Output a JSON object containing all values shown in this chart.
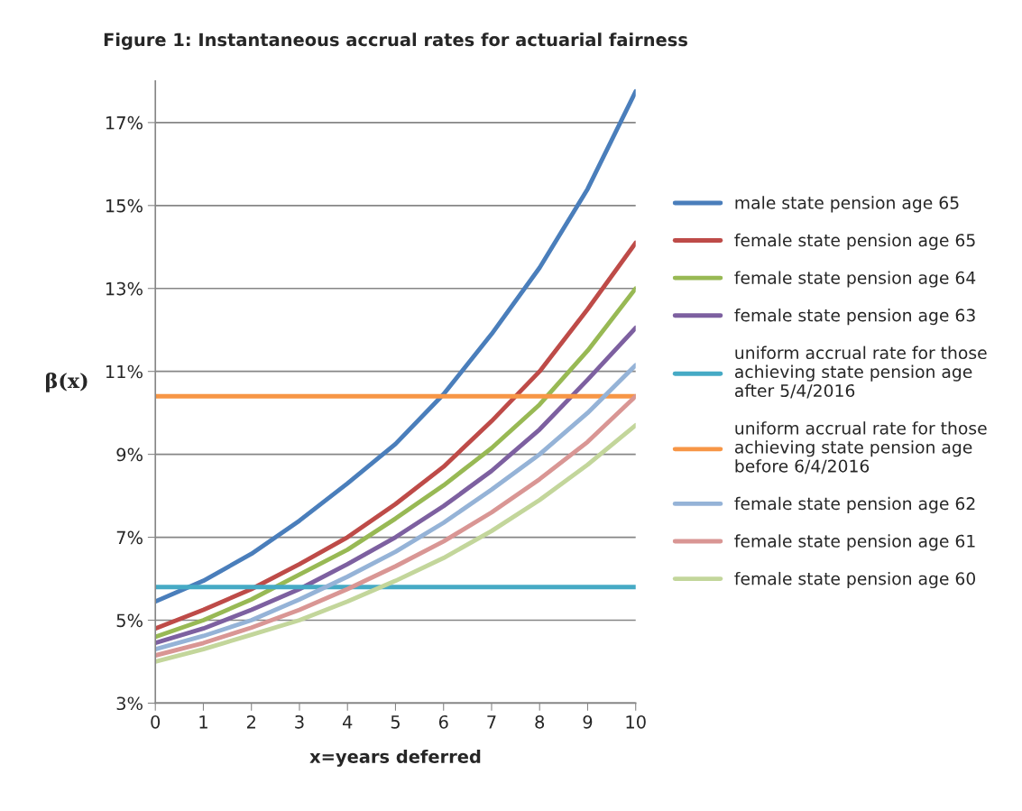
{
  "chart_data": {
    "type": "line",
    "title": "Figure 1: Instantaneous accrual rates for actuarial fairness",
    "xlabel": "x=years deferred",
    "ylabel": "β(x)",
    "x": [
      0,
      1,
      2,
      3,
      4,
      5,
      6,
      7,
      8,
      9,
      10
    ],
    "series": [
      {
        "name": "male state pension age 65",
        "color": "#4a7ebb",
        "values": [
          5.45,
          5.95,
          6.6,
          7.4,
          8.3,
          9.25,
          10.45,
          11.9,
          13.5,
          15.4,
          17.75
        ]
      },
      {
        "name": "female state pension age 65",
        "color": "#be4b48",
        "values": [
          4.8,
          5.25,
          5.75,
          6.35,
          7.0,
          7.8,
          8.7,
          9.8,
          11.0,
          12.5,
          14.1
        ]
      },
      {
        "name": "female state pension age 64",
        "color": "#98b954",
        "values": [
          4.6,
          5.0,
          5.5,
          6.1,
          6.7,
          7.45,
          8.25,
          9.15,
          10.2,
          11.5,
          13.0
        ]
      },
      {
        "name": "female state pension age 63",
        "color": "#7d60a0",
        "values": [
          4.45,
          4.8,
          5.25,
          5.75,
          6.35,
          7.0,
          7.75,
          8.6,
          9.6,
          10.8,
          12.05
        ]
      },
      {
        "name": "uniform accrual rate for those\nachieving state pension age\nafter 5/4/2016",
        "color": "#46aac5",
        "values": [
          5.8,
          5.8,
          5.8,
          5.8,
          5.8,
          5.8,
          5.8,
          5.8,
          5.8,
          5.8,
          5.8
        ]
      },
      {
        "name": "uniform accrual rate for those\nachieving state pension age\nbefore 6/4/2016",
        "color": "#f79646",
        "values": [
          10.4,
          10.4,
          10.4,
          10.4,
          10.4,
          10.4,
          10.4,
          10.4,
          10.4,
          10.4,
          10.4
        ]
      },
      {
        "name": "female state pension age 62",
        "color": "#95b3d7",
        "values": [
          4.3,
          4.62,
          5.0,
          5.5,
          6.05,
          6.65,
          7.35,
          8.15,
          9.0,
          10.0,
          11.15
        ]
      },
      {
        "name": "female state pension age 61",
        "color": "#d99694",
        "values": [
          4.15,
          4.45,
          4.82,
          5.25,
          5.75,
          6.3,
          6.9,
          7.6,
          8.4,
          9.3,
          10.4
        ]
      },
      {
        "name": "female state pension age 60",
        "color": "#c3d69b",
        "values": [
          4.0,
          4.3,
          4.65,
          5.0,
          5.45,
          5.95,
          6.5,
          7.15,
          7.9,
          8.75,
          9.7
        ]
      }
    ],
    "xlim": [
      0,
      10
    ],
    "xticks": [
      0,
      1,
      2,
      3,
      4,
      5,
      6,
      7,
      8,
      9,
      10
    ],
    "ylim": [
      3,
      18
    ],
    "yticks": [
      {
        "value": 3,
        "label": "3%"
      },
      {
        "value": 5,
        "label": "5%"
      },
      {
        "value": 7,
        "label": "7%"
      },
      {
        "value": 9,
        "label": "9%"
      },
      {
        "value": 11,
        "label": "11%"
      },
      {
        "value": 13,
        "label": "13%"
      },
      {
        "value": 15,
        "label": "15%"
      },
      {
        "value": 17,
        "label": "17%"
      }
    ],
    "grid": "y",
    "legend": "right",
    "marker": "none",
    "line_style": "solid"
  }
}
